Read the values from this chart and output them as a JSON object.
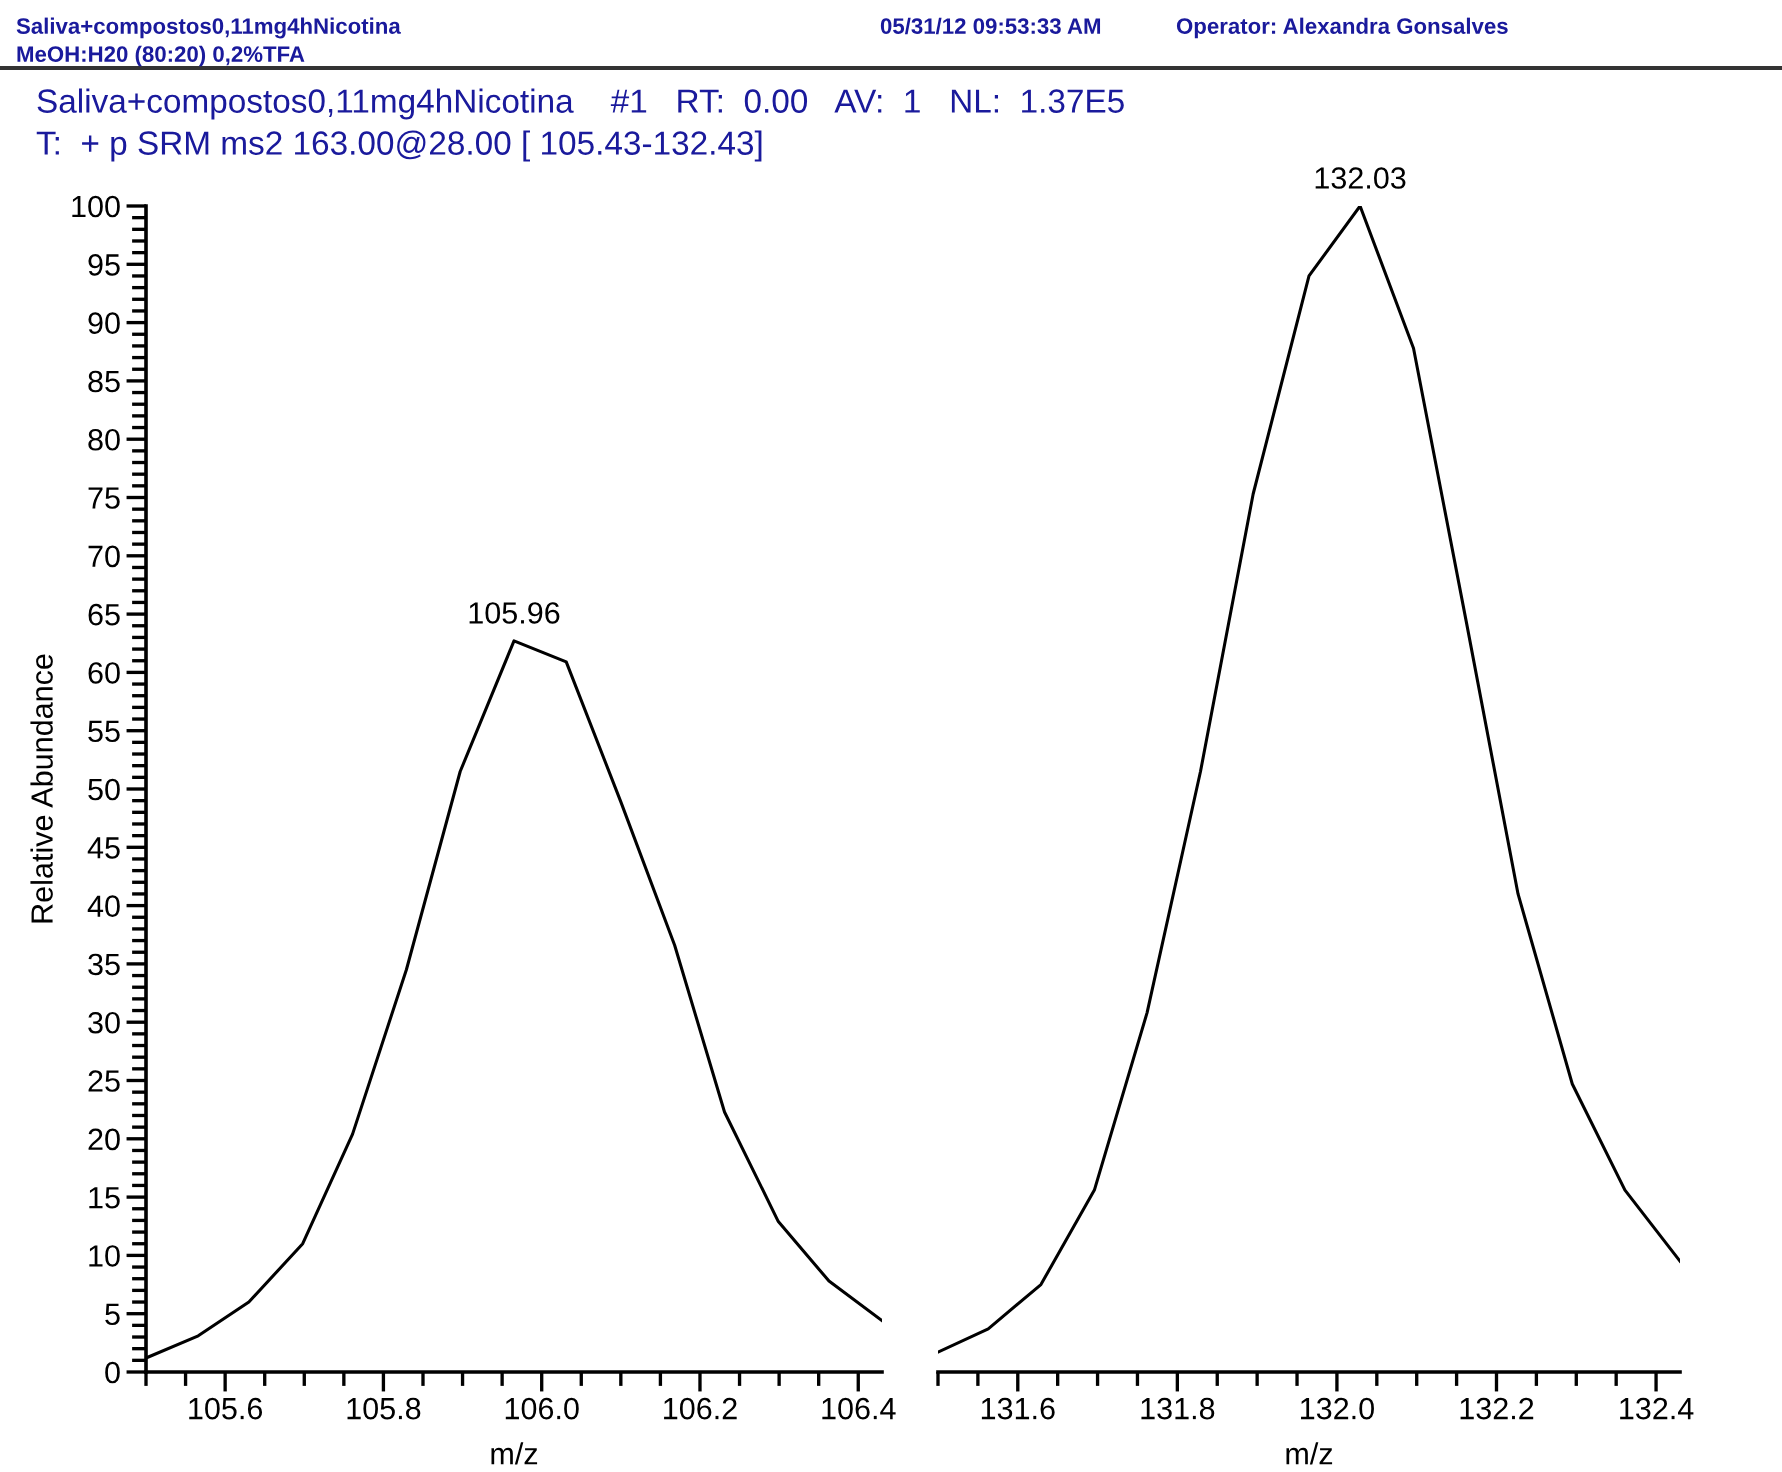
{
  "chart_data": [
    {
      "type": "line",
      "title": "Saliva+compostos0,11mg4hNicotina    #1   RT:  0.00   AV:  1   NL:  1.37E5",
      "subtitle": "T:  + p SRM ms2 163.00@28.00 [ 105.43-132.43]",
      "annotations": [
        "Saliva+compostos0,11mg4hNicotina",
        "05/31/12 09:53:33 AM",
        "Operator: Alexandra Gonsalves",
        "MeOH:H20 (80:20) 0,2%TFA",
        {
          "text": "105.96",
          "x": 105.965,
          "y": 62.7
        }
      ],
      "xlabel": "m/z",
      "ylabel": "Relative Abundance",
      "x": [
        105.5,
        105.566,
        105.63,
        105.698,
        105.761,
        105.829,
        105.897,
        105.965,
        106.031,
        106.1,
        106.168,
        106.231,
        106.299,
        106.363,
        106.43
      ],
      "series": [
        {
          "color": "#000000",
          "values": [
            1.2,
            3.1,
            6.0,
            11.0,
            20.4,
            34.5,
            51.5,
            62.7,
            60.9,
            48.9,
            36.6,
            22.3,
            12.9,
            7.8,
            4.4
          ]
        }
      ],
      "xlim": [
        105.5,
        106.43
      ],
      "xticks": [
        105.6,
        105.8,
        {
          "value": 106.0,
          "label": "106.0"
        },
        106.2,
        106.4
      ],
      "ylim": [
        0,
        100
      ],
      "yticks": [
        0,
        5,
        10,
        15,
        20,
        25,
        30,
        35,
        40,
        45,
        50,
        55,
        60,
        65,
        70,
        75,
        80,
        85,
        90,
        95,
        100
      ]
    },
    {
      "type": "line",
      "annotations": [
        {
          "text": "132.03",
          "x": 132.029,
          "y": 100
        }
      ],
      "xlabel": "m/z",
      "tick_labels": "x",
      "x": [
        131.5,
        131.563,
        131.629,
        131.696,
        131.762,
        131.829,
        131.895,
        131.965,
        132.029,
        132.096,
        132.162,
        132.227,
        132.295,
        132.361,
        132.43
      ],
      "series": [
        {
          "color": "#000000",
          "values": [
            1.7,
            3.7,
            7.5,
            15.6,
            30.8,
            51.5,
            75.3,
            94.0,
            100,
            87.8,
            64.4,
            41.0,
            24.7,
            15.6,
            9.5
          ]
        }
      ],
      "xlim": [
        131.5,
        132.43
      ],
      "xticks": [
        131.6,
        131.8,
        {
          "value": 132.0,
          "label": "132.0"
        },
        132.2,
        132.4
      ],
      "ylim": [
        0,
        100
      ]
    }
  ]
}
